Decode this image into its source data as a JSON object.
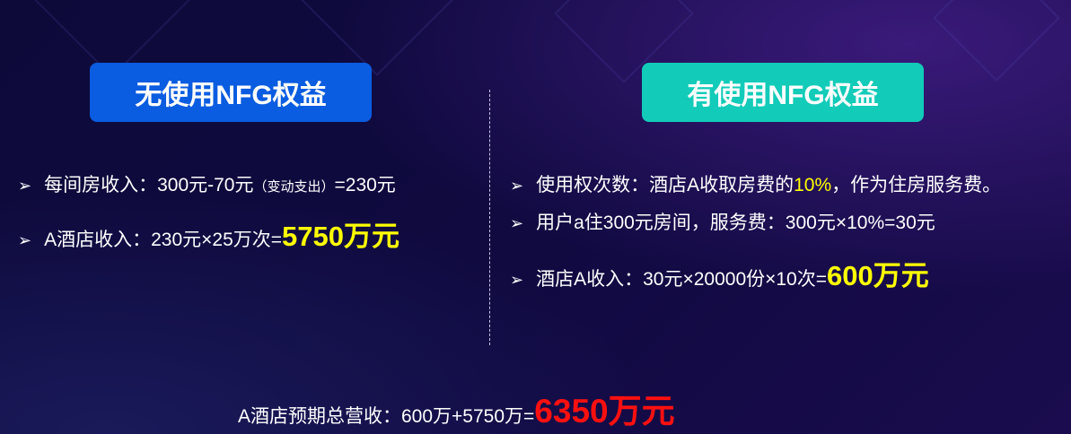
{
  "left": {
    "title": "无使用NFG权益",
    "color": "#0a5ce0",
    "items": [
      {
        "a": "每间房收入：300元-70元",
        "b": "（变动支出）",
        "c": "=230元"
      },
      {
        "a": "A酒店收入：230元×25万次=",
        "hl": "5750万元"
      }
    ]
  },
  "right": {
    "title": "有使用NFG权益",
    "color": "#12cbb8",
    "items": [
      {
        "a": "使用权次数：酒店A收取房费的",
        "hl": "10%",
        "c": "，作为住房服务费。"
      },
      {
        "a": "用户a住300元房间，服务费：300元×10%=30元"
      },
      {
        "a": "酒店A收入：30元×20000份×10次=",
        "hl": "600万元"
      }
    ]
  },
  "total": {
    "label": "A酒店预期总营收：600万+5750万=",
    "value": "6350万元"
  },
  "bullet_icon": "arrowhead-bullet-icon"
}
